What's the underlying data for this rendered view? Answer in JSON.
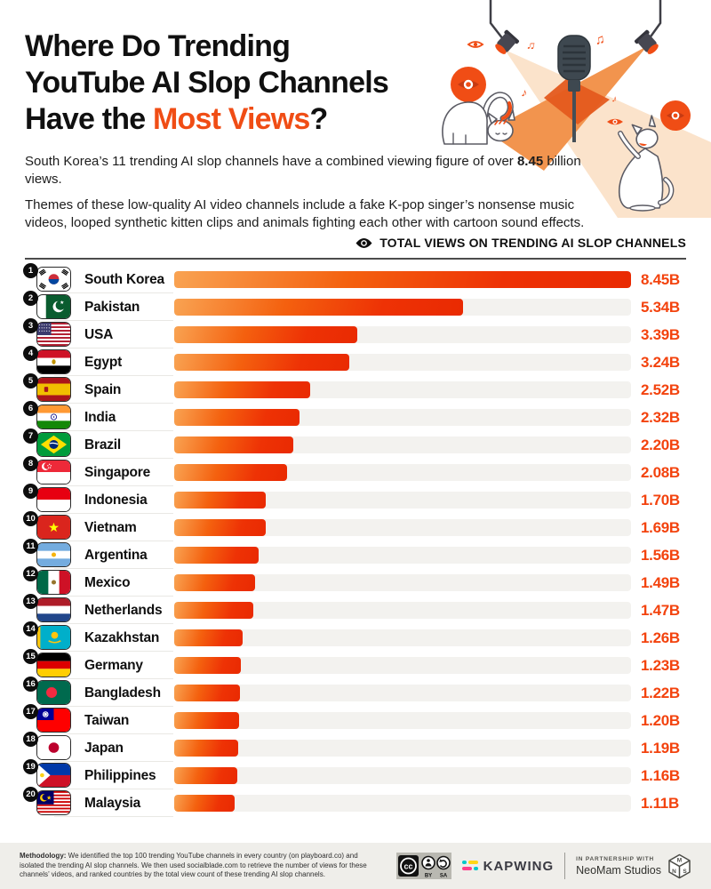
{
  "header": {
    "title_line1": "Where Do Trending",
    "title_line2": "YouTube AI Slop Channels",
    "title_line3_prefix": "Have the ",
    "title_line3_highlight": "Most Views",
    "title_line3_suffix": "?",
    "intro1_prefix": "South Korea’s 11 trending AI slop channels have a combined viewing figure of over ",
    "intro1_bold": "8.45",
    "intro1_suffix": " billion views.",
    "intro2": "Themes of these low-quality AI video channels include a fake K-pop singer’s nonsense music videos, looped synthetic kitten clips and animals fighting each other with cartoon sound effects."
  },
  "chart_data": {
    "type": "bar",
    "orientation": "horizontal",
    "title": "TOTAL VIEWS ON TRENDING AI SLOP CHANNELS",
    "value_unit": "billion views",
    "xlim": [
      0,
      8.45
    ],
    "legend_position": "none",
    "grid": false,
    "rows": [
      {
        "rank": 1,
        "country": "South Korea",
        "flag": "kr",
        "value": 8.45,
        "label": "8.45B"
      },
      {
        "rank": 2,
        "country": "Pakistan",
        "flag": "pk",
        "value": 5.34,
        "label": "5.34B"
      },
      {
        "rank": 3,
        "country": "USA",
        "flag": "us",
        "value": 3.39,
        "label": "3.39B"
      },
      {
        "rank": 4,
        "country": "Egypt",
        "flag": "eg",
        "value": 3.24,
        "label": "3.24B"
      },
      {
        "rank": 5,
        "country": "Spain",
        "flag": "es",
        "value": 2.52,
        "label": "2.52B"
      },
      {
        "rank": 6,
        "country": "India",
        "flag": "in",
        "value": 2.32,
        "label": "2.32B"
      },
      {
        "rank": 7,
        "country": "Brazil",
        "flag": "br",
        "value": 2.2,
        "label": "2.20B"
      },
      {
        "rank": 8,
        "country": "Singapore",
        "flag": "sg",
        "value": 2.08,
        "label": "2.08B"
      },
      {
        "rank": 9,
        "country": "Indonesia",
        "flag": "id",
        "value": 1.7,
        "label": "1.70B"
      },
      {
        "rank": 10,
        "country": "Vietnam",
        "flag": "vn",
        "value": 1.69,
        "label": "1.69B"
      },
      {
        "rank": 11,
        "country": "Argentina",
        "flag": "ar",
        "value": 1.56,
        "label": "1.56B"
      },
      {
        "rank": 12,
        "country": "Mexico",
        "flag": "mx",
        "value": 1.49,
        "label": "1.49B"
      },
      {
        "rank": 13,
        "country": "Netherlands",
        "flag": "nl",
        "value": 1.47,
        "label": "1.47B"
      },
      {
        "rank": 14,
        "country": "Kazakhstan",
        "flag": "kz",
        "value": 1.26,
        "label": "1.26B"
      },
      {
        "rank": 15,
        "country": "Germany",
        "flag": "de",
        "value": 1.23,
        "label": "1.23B"
      },
      {
        "rank": 16,
        "country": "Bangladesh",
        "flag": "bd",
        "value": 1.22,
        "label": "1.22B"
      },
      {
        "rank": 17,
        "country": "Taiwan",
        "flag": "tw",
        "value": 1.2,
        "label": "1.20B"
      },
      {
        "rank": 18,
        "country": "Japan",
        "flag": "jp",
        "value": 1.19,
        "label": "1.19B"
      },
      {
        "rank": 19,
        "country": "Philippines",
        "flag": "ph",
        "value": 1.16,
        "label": "1.16B"
      },
      {
        "rank": 20,
        "country": "Malaysia",
        "flag": "my",
        "value": 1.11,
        "label": "1.11B"
      }
    ]
  },
  "footer": {
    "methodology_label": "Methodology:",
    "methodology_text": " We identified the top 100 trending YouTube channels in every country (on playboard.co) and isolated the trending AI slop channels. We then used socialblade.com to retrieve the number of views for these channels’ videos, and ranked countries by the total view count of these trending AI slop channels.",
    "cc_by": "BY",
    "cc_sa": "SA",
    "kapwing_name": "KAPWING",
    "partnership_line1": "IN PARTNERSHIP WITH",
    "partnership_line2": "NeoMam Studios"
  },
  "colors": {
    "accent": "#F04D15",
    "bar_gradient_start": "#F9A352",
    "bar_gradient_end": "#E92A02",
    "bar_track": "#F3F2EF",
    "footer_bg": "#EFEEEA",
    "text": "#101010"
  }
}
